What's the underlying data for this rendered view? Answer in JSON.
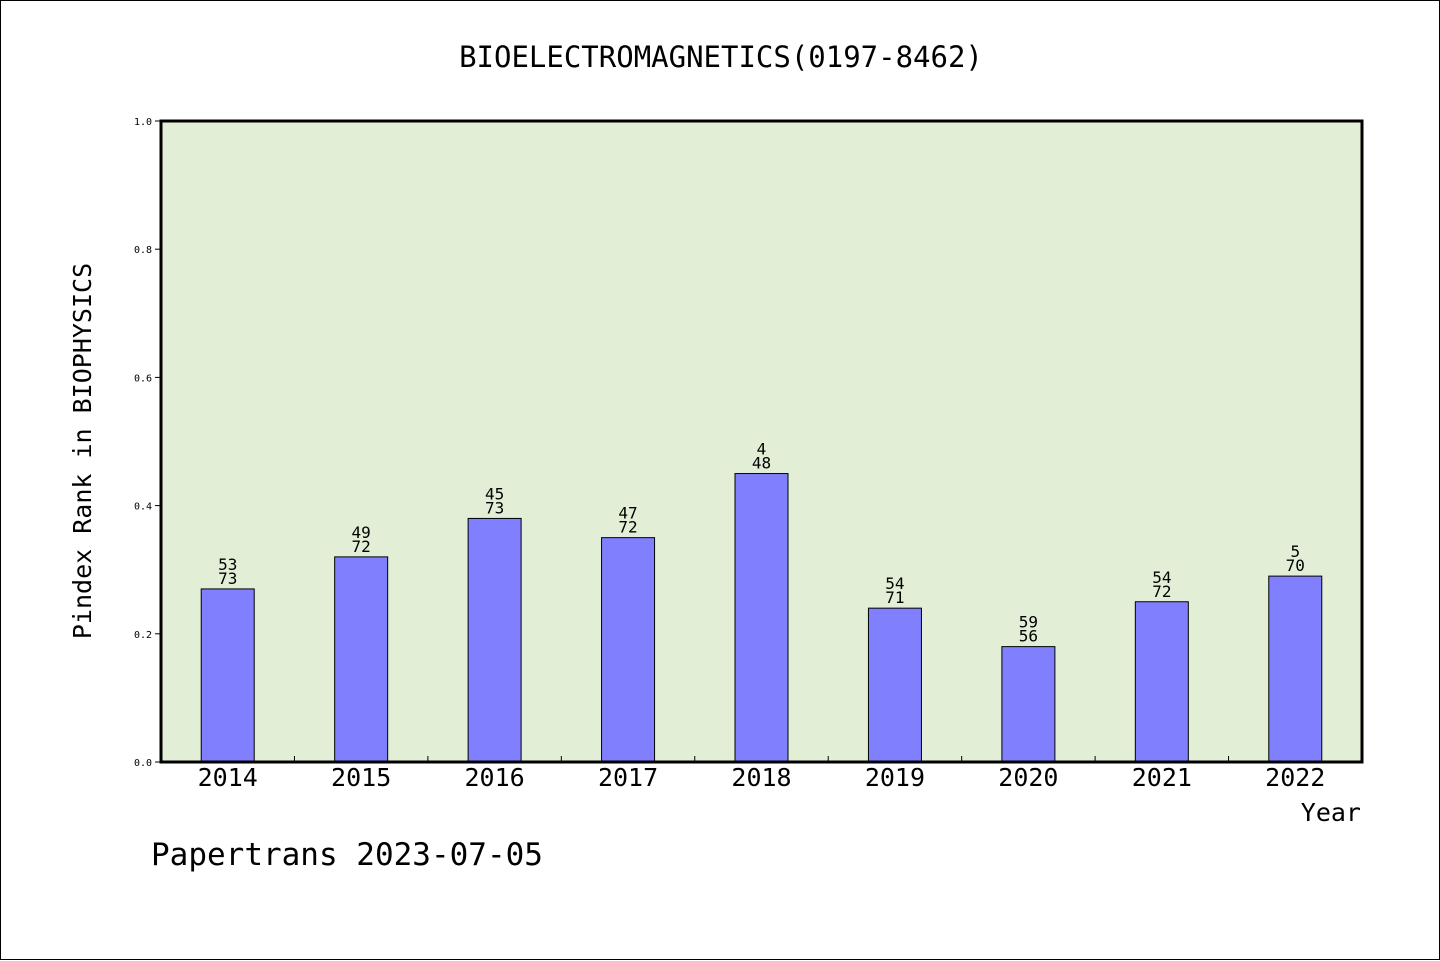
{
  "chart_data": {
    "type": "bar",
    "title": "BIOELECTROMAGNETICS(0197-8462)",
    "xlabel": "Year",
    "ylabel": "Pindex Rank in BIOPHYSICS",
    "ylim": [
      0.0,
      1.0
    ],
    "yticks": [
      "0.0",
      "0.2",
      "0.4",
      "0.6",
      "0.8",
      "1.0"
    ],
    "categories": [
      "2014",
      "2015",
      "2016",
      "2017",
      "2018",
      "2019",
      "2020",
      "2021",
      "2022"
    ],
    "values": [
      0.27,
      0.32,
      0.38,
      0.35,
      0.45,
      0.24,
      0.18,
      0.25,
      0.29
    ],
    "label_top": [
      "53",
      "49",
      "45",
      "47",
      "4",
      "54",
      "59",
      "54",
      "5"
    ],
    "label_bottom": [
      "73",
      "72",
      "73",
      "72",
      "48",
      "71",
      "56",
      "72",
      "70"
    ],
    "grid": false,
    "colors": {
      "plot_bg": "#e2efd6",
      "bar": "#8080ff",
      "axis": "#000000"
    }
  },
  "footer": {
    "text": "Papertrans 2023-07-05"
  }
}
